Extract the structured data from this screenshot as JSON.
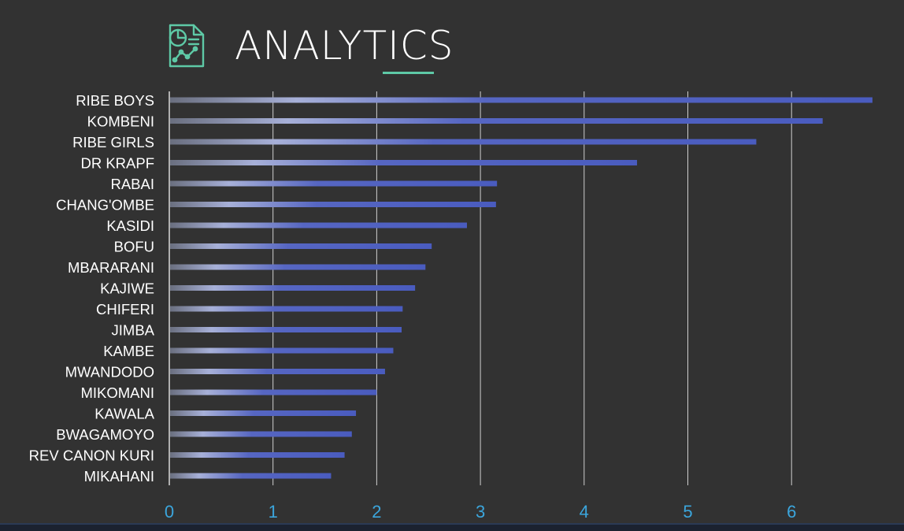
{
  "header": {
    "title": "ANALYTICS",
    "icon": "report-document-chart-icon",
    "accent_color": "#5ec9a6"
  },
  "chart_data": {
    "type": "bar",
    "orientation": "horizontal",
    "categories": [
      "RIBE BOYS",
      "KOMBENI",
      "RIBE GIRLS",
      "DR KRAPF",
      "RABAI",
      "CHANG'OMBE",
      "KASIDI",
      "BOFU",
      "MBARARANI",
      "KAJIWE",
      "CHIFERI",
      "JIMBA",
      "KAMBE",
      "MWANDODO",
      "MIKOMANI",
      "KAWALA",
      "BWAGAMOYO",
      "REV CANON KURI",
      "MIKAHANI"
    ],
    "values": [
      6.78,
      6.3,
      5.66,
      4.51,
      3.16,
      3.15,
      2.87,
      2.53,
      2.47,
      2.37,
      2.25,
      2.24,
      2.16,
      2.08,
      2.0,
      1.8,
      1.76,
      1.69,
      1.56
    ],
    "xticks": [
      "0",
      "1",
      "2",
      "3",
      "4",
      "5",
      "6"
    ],
    "xlim": [
      0,
      6.8
    ],
    "grid": "vertical",
    "bar_color": "#4a5cbf",
    "tick_color": "#3ba6dd",
    "label_color": "#ffffff"
  }
}
